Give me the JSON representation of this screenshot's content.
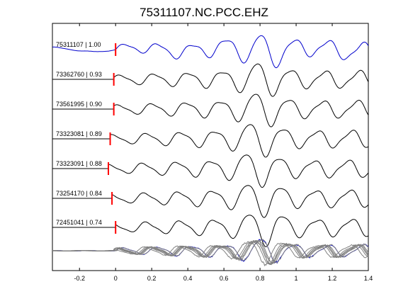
{
  "chart_data": {
    "type": "line",
    "title": "75311107.NC.PCC.EHZ",
    "xlabel": "",
    "ylabel": "",
    "xlim": [
      -0.35,
      1.4
    ],
    "x_ticks": [
      "-0.2",
      "0",
      "0.2",
      "0.4",
      "0.6",
      "0.8",
      "1",
      "1.2",
      "1.4"
    ],
    "x_tick_values": [
      -0.2,
      0,
      0.2,
      0.4,
      0.6,
      0.8,
      1.0,
      1.2,
      1.4
    ],
    "grid": false,
    "pick_marker_color": "#ff0000",
    "series": [
      {
        "name": "75311107 | 1.00",
        "color": "#0000cc",
        "pick_time": 0.0
      },
      {
        "name": "73362760 | 0.93",
        "color": "#000000",
        "pick_time": -0.01
      },
      {
        "name": "73561995 | 0.90",
        "color": "#000000",
        "pick_time": -0.01
      },
      {
        "name": "73323081 | 0.89",
        "color": "#000000",
        "pick_time": -0.03
      },
      {
        "name": "73323091 | 0.88",
        "color": "#000000",
        "pick_time": -0.04
      },
      {
        "name": "73254170 | 0.84",
        "color": "#000000",
        "pick_time": -0.02
      },
      {
        "name": "72451041 | 0.74",
        "color": "#000000",
        "pick_time": 0.0
      }
    ],
    "stack_panel": {
      "description": "overlay of all traces",
      "colors": [
        "#0000cc",
        "#808080"
      ]
    }
  }
}
